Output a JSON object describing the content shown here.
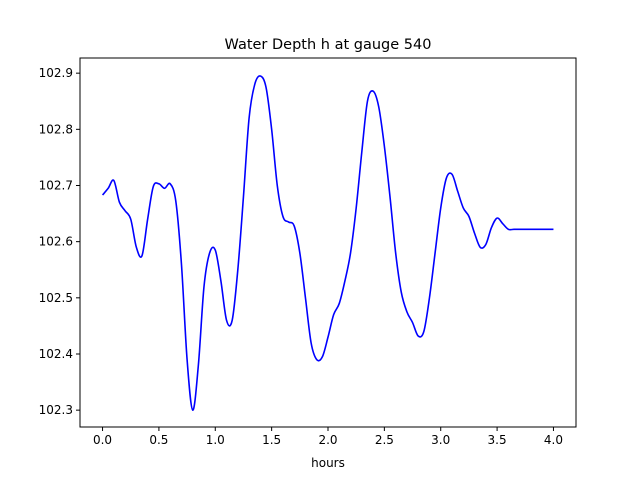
{
  "chart_data": {
    "type": "line",
    "title": "Water Depth h at gauge 540",
    "xlabel": "hours",
    "ylabel": "",
    "xlim": [
      -0.2,
      4.2
    ],
    "ylim": [
      102.27,
      102.927
    ],
    "grid": false,
    "xticks": [
      0.0,
      0.5,
      1.0,
      1.5,
      2.0,
      2.5,
      3.0,
      3.5,
      4.0
    ],
    "xtick_labels": [
      "0.0",
      "0.5",
      "1.0",
      "1.5",
      "2.0",
      "2.5",
      "3.0",
      "3.5",
      "4.0"
    ],
    "yticks": [
      102.3,
      102.4,
      102.5,
      102.6,
      102.7,
      102.8,
      102.9
    ],
    "ytick_labels": [
      "102.3",
      "102.4",
      "102.5",
      "102.6",
      "102.7",
      "102.8",
      "102.9"
    ],
    "series": [
      {
        "name": "",
        "color": "#0000ff",
        "x": [
          0.0,
          0.05,
          0.1,
          0.15,
          0.2,
          0.25,
          0.3,
          0.35,
          0.4,
          0.45,
          0.5,
          0.55,
          0.6,
          0.65,
          0.7,
          0.75,
          0.8,
          0.85,
          0.9,
          0.95,
          1.0,
          1.05,
          1.1,
          1.15,
          1.2,
          1.25,
          1.3,
          1.35,
          1.4,
          1.45,
          1.5,
          1.55,
          1.6,
          1.65,
          1.7,
          1.75,
          1.8,
          1.85,
          1.9,
          1.95,
          2.0,
          2.05,
          2.1,
          2.15,
          2.2,
          2.25,
          2.3,
          2.35,
          2.4,
          2.45,
          2.5,
          2.55,
          2.6,
          2.65,
          2.7,
          2.75,
          2.8,
          2.85,
          2.9,
          2.95,
          3.0,
          3.05,
          3.1,
          3.15,
          3.2,
          3.25,
          3.3,
          3.35,
          3.4,
          3.45,
          3.5,
          3.55,
          3.6,
          3.65,
          3.7,
          3.75,
          3.8,
          3.85,
          3.9,
          3.95,
          4.0
        ],
        "y": [
          102.683,
          102.695,
          102.709,
          102.67,
          102.655,
          102.64,
          102.59,
          102.575,
          102.64,
          102.698,
          102.703,
          102.695,
          102.703,
          102.672,
          102.56,
          102.39,
          102.3,
          102.38,
          102.52,
          102.58,
          102.585,
          102.53,
          102.46,
          102.46,
          102.55,
          102.68,
          102.82,
          102.88,
          102.895,
          102.875,
          102.8,
          102.7,
          102.645,
          102.635,
          102.628,
          102.58,
          102.5,
          102.42,
          102.39,
          102.395,
          102.43,
          102.47,
          102.49,
          102.53,
          102.58,
          102.66,
          102.76,
          102.85,
          102.868,
          102.84,
          102.77,
          102.68,
          102.58,
          102.51,
          102.475,
          102.456,
          102.432,
          102.44,
          102.5,
          102.58,
          102.66,
          102.713,
          102.72,
          102.69,
          102.66,
          102.645,
          102.615,
          102.59,
          102.595,
          102.625,
          102.642,
          102.632,
          102.622,
          102.622,
          102.622,
          102.622,
          102.622,
          102.622,
          102.622,
          102.622,
          102.622
        ]
      }
    ]
  }
}
